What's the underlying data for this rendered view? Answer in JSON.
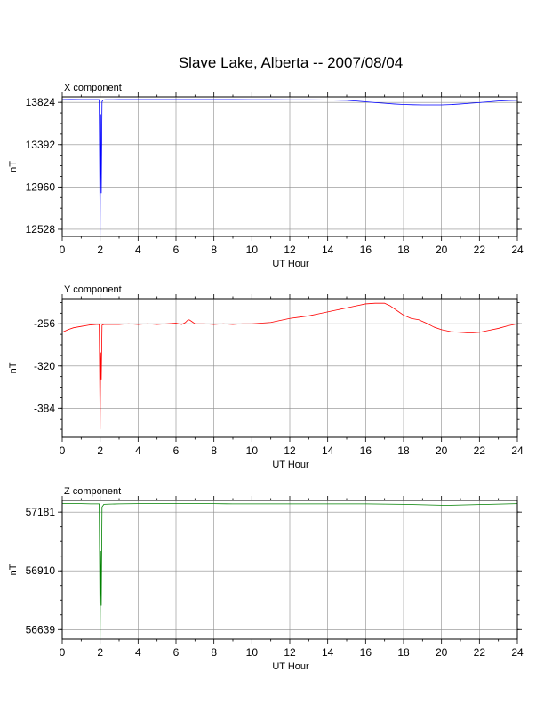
{
  "title": "Slave Lake, Alberta -- 2007/08/04",
  "chart_data": [
    {
      "type": "line",
      "component_label": "X component",
      "xlabel": "UT Hour",
      "ylabel": "nT",
      "xlim": [
        0,
        24
      ],
      "ylim": [
        12455,
        13880
      ],
      "xticks": [
        0,
        2,
        4,
        6,
        8,
        10,
        12,
        14,
        16,
        18,
        20,
        22,
        24
      ],
      "yticks": [
        12528,
        12960,
        13392,
        13824
      ],
      "grid": true,
      "series": [
        {
          "color": "#0000ff",
          "x": [
            0,
            0.5,
            1,
            1.5,
            1.95,
            2.0,
            2.03,
            2.06,
            2.1,
            2.15,
            2.3,
            3,
            4,
            5,
            6,
            7,
            8,
            9,
            10,
            11,
            12,
            13,
            14,
            15,
            15.5,
            16,
            16.5,
            17,
            17.5,
            18,
            18.5,
            19,
            19.5,
            20,
            20.5,
            21,
            21.5,
            22,
            22.5,
            23,
            23.5,
            24
          ],
          "y": [
            13852,
            13854,
            13853,
            13852,
            13852,
            12470,
            13700,
            12900,
            13830,
            13849,
            13851,
            13852,
            13853,
            13852,
            13852,
            13853,
            13852,
            13852,
            13851,
            13851,
            13850,
            13850,
            13849,
            13845,
            13838,
            13830,
            13822,
            13815,
            13808,
            13803,
            13800,
            13798,
            13798,
            13798,
            13802,
            13808,
            13815,
            13822,
            13830,
            13838,
            13843,
            13845
          ]
        }
      ]
    },
    {
      "type": "line",
      "component_label": "Y component",
      "xlabel": "UT Hour",
      "ylabel": "nT",
      "xlim": [
        0,
        24
      ],
      "ylim": [
        -428,
        -218
      ],
      "xticks": [
        0,
        2,
        4,
        6,
        8,
        10,
        12,
        14,
        16,
        18,
        20,
        22,
        24
      ],
      "yticks": [
        -384,
        -320,
        -256
      ],
      "grid": true,
      "series": [
        {
          "color": "#ff0000",
          "x": [
            0,
            0.3,
            0.6,
            1.0,
            1.4,
            1.8,
            1.95,
            2.0,
            2.03,
            2.06,
            2.1,
            2.2,
            2.5,
            3,
            3.5,
            4,
            4.5,
            5,
            5.5,
            6,
            6.3,
            6.5,
            6.6,
            6.7,
            6.8,
            7.0,
            7.2,
            7.5,
            8,
            8.5,
            9,
            9.5,
            10,
            10.5,
            11,
            11.5,
            12,
            12.5,
            13,
            13.5,
            14,
            14.5,
            15,
            15.5,
            16,
            16.5,
            17,
            17.3,
            17.6,
            18,
            18.4,
            18.8,
            19.2,
            19.6,
            20,
            20.5,
            21,
            21.5,
            22,
            22.5,
            23,
            23.5,
            24
          ],
          "y": [
            -269,
            -265,
            -262,
            -260,
            -258,
            -257,
            -257,
            -416,
            -300,
            -340,
            -258,
            -257,
            -257,
            -257,
            -256,
            -257,
            -256,
            -257,
            -256,
            -255,
            -257,
            -254,
            -251,
            -250,
            -252,
            -256,
            -256,
            -256,
            -257,
            -256,
            -257,
            -256,
            -256,
            -255,
            -254,
            -251,
            -248,
            -246,
            -244,
            -241,
            -238,
            -235,
            -232,
            -229,
            -226,
            -225,
            -225,
            -229,
            -235,
            -243,
            -248,
            -250,
            -255,
            -261,
            -265,
            -268,
            -269,
            -270,
            -269,
            -266,
            -263,
            -259,
            -256
          ]
        }
      ]
    },
    {
      "type": "line",
      "component_label": "Z component",
      "xlabel": "UT Hour",
      "ylabel": "nT",
      "xlim": [
        0,
        24
      ],
      "ylim": [
        56595,
        57235
      ],
      "xticks": [
        0,
        2,
        4,
        6,
        8,
        10,
        12,
        14,
        16,
        18,
        20,
        22,
        24
      ],
      "yticks": [
        56639,
        56910,
        57181
      ],
      "grid": true,
      "series": [
        {
          "color": "#008000",
          "x": [
            0,
            0.5,
            1,
            1.5,
            1.95,
            2.0,
            2.03,
            2.06,
            2.1,
            2.2,
            2.5,
            3,
            4,
            5,
            6,
            7,
            8,
            9,
            10,
            11,
            12,
            13,
            14,
            15,
            16,
            17,
            18,
            18.5,
            19,
            19.5,
            20,
            20.5,
            21,
            21.5,
            22,
            23,
            24
          ],
          "y": [
            57220,
            57220,
            57220,
            57219,
            57219,
            56598,
            57000,
            56750,
            57205,
            57217,
            57218,
            57219,
            57220,
            57220,
            57220,
            57220,
            57220,
            57219,
            57219,
            57219,
            57219,
            57219,
            57219,
            57219,
            57219,
            57218,
            57217,
            57216,
            57215,
            57214,
            57213,
            57213,
            57214,
            57215,
            57216,
            57218,
            57220
          ]
        }
      ]
    }
  ]
}
